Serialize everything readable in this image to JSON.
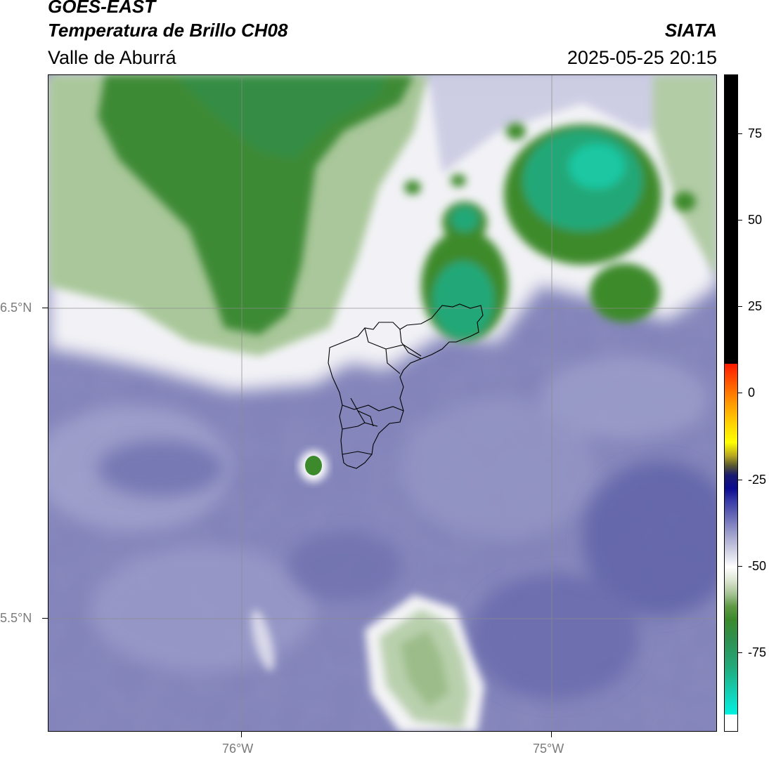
{
  "header": {
    "title_line1": "GOES-EAST",
    "title_line2": "Temperatura de Brillo CH08",
    "region": "Valle de Aburrá",
    "organization": "SIATA",
    "datetime": "2025-05-25 20:15"
  },
  "map": {
    "lat_labels": [
      "6.5°N",
      "5.5°N"
    ],
    "lon_labels": [
      "76°W",
      "75°W"
    ]
  },
  "colorbar": {
    "ticks": [
      "75",
      "50",
      "25",
      "0",
      "-25",
      "-50",
      "-75"
    ],
    "colors": {
      "hot": "#000000",
      "warm_red": "#ff1a00",
      "yellow": "#ffff00",
      "dark_blue": "#0a0a90",
      "lavender": "#9fa1cc",
      "white": "#ffffff",
      "green": "#3c8a2c",
      "cyan": "#00f0e0"
    }
  }
}
